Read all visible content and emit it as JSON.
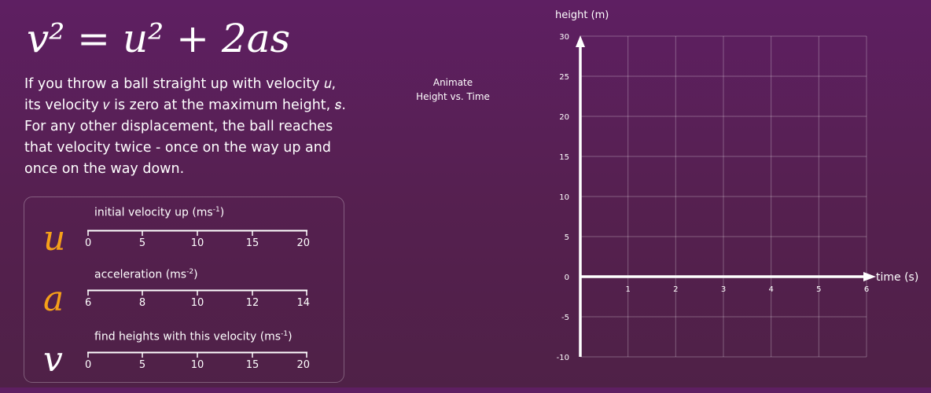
{
  "equation": "v² = u² + 2as",
  "description": "If you throw a ball straight up with velocity 𝑢, its velocity 𝑣 is zero at the maximum height, 𝑠. For any other displacement, the ball reaches that velocity twice - once on the way up and once on the way down.",
  "animate_button": [
    "Animate",
    "Height vs. Time"
  ],
  "sliders": [
    {
      "symbol": "u",
      "label": "initial velocity up (ms",
      "label_sup": "-1",
      "label_end": ")",
      "ticks": [
        "0",
        "5",
        "10",
        "15",
        "20"
      ],
      "color": "#f6a019"
    },
    {
      "symbol": "a",
      "label": "acceleration (ms",
      "label_sup": "-2",
      "label_end": ")",
      "ticks": [
        "6",
        "8",
        "10",
        "12",
        "14"
      ],
      "color": "#f6a019"
    },
    {
      "symbol": "v",
      "label": "find heights with this velocity (ms",
      "label_sup": "-1",
      "label_end": ")",
      "ticks": [
        "0",
        "5",
        "10",
        "15",
        "20"
      ],
      "color": "#ffffff"
    }
  ],
  "chart_data": {
    "type": "line",
    "title": "",
    "xlabel": "time (s)",
    "ylabel": "height (m)",
    "xlim": [
      0,
      6
    ],
    "ylim": [
      -10,
      30
    ],
    "x_ticks": [
      1,
      2,
      3,
      4,
      5,
      6
    ],
    "y_ticks": [
      30,
      25,
      20,
      15,
      10,
      5,
      0,
      -5,
      -10
    ],
    "grid": true,
    "series": []
  }
}
